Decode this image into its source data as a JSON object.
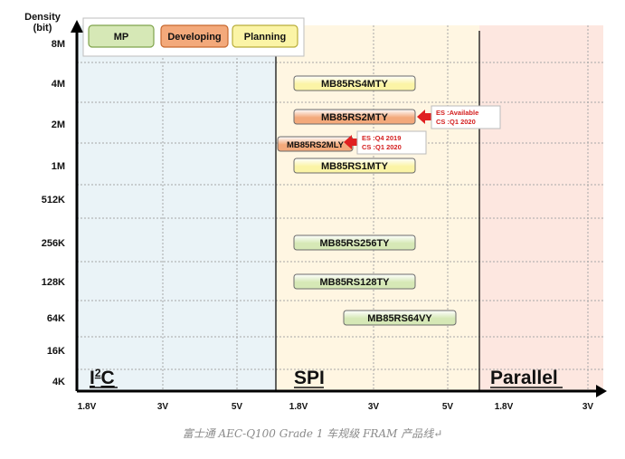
{
  "caption": "富士通 AEC-Q100 Grade 1 车规级 FRAM 产品线↵",
  "chart_data": {
    "type": "table",
    "ylabel_lines": [
      "Density",
      "(bit)"
    ],
    "y_levels": [
      "8M",
      "4M",
      "2M",
      "1M",
      "512K",
      "256K",
      "128K",
      "64K",
      "16K",
      "4K"
    ],
    "regions": [
      {
        "key": "i2c",
        "label": "I2C",
        "label_base": "I",
        "label_sup": "2",
        "label_rest": "C",
        "color": "#eaf3f7",
        "ticks": [
          "1.8V",
          "3V",
          "5V"
        ]
      },
      {
        "key": "spi",
        "label": "SPI",
        "color": "#fff6e2",
        "ticks": [
          "1.8V",
          "3V",
          "5V"
        ]
      },
      {
        "key": "parallel",
        "label": "Parallel",
        "color": "#fde7e0",
        "ticks": [
          "1.8V",
          "3V"
        ]
      }
    ],
    "legend": [
      {
        "label": "MP",
        "color": "#d6e8b6",
        "border": "#7fa34c"
      },
      {
        "label": "Developing",
        "color": "#f3a97b",
        "border": "#c7692f"
      },
      {
        "label": "Planning",
        "color": "#fbf4a6",
        "border": "#b9ad3a"
      }
    ],
    "products": [
      {
        "name": "MB85RS4MTY",
        "density": "4M",
        "status": "Planning",
        "v_min": "1.8V",
        "v_max": "5V"
      },
      {
        "name": "MB85RS2MTY",
        "density": "2M",
        "status": "Developing",
        "v_min": "1.8V",
        "v_max": "5V",
        "notes": [
          "ES :Available",
          "CS :Q1 2020"
        ]
      },
      {
        "name": "MB85RS2MLY",
        "density": "2M",
        "status": "Developing",
        "v_min": "1.8V",
        "v_max": "1.8V",
        "notes": [
          "ES :Q4 2019",
          "CS :Q1 2020"
        ]
      },
      {
        "name": "MB85RS1MTY",
        "density": "1M",
        "status": "Planning",
        "v_min": "1.8V",
        "v_max": "5V"
      },
      {
        "name": "MB85RS256TY",
        "density": "256K",
        "status": "MP",
        "v_min": "1.8V",
        "v_max": "5V"
      },
      {
        "name": "MB85RS128TY",
        "density": "128K",
        "status": "MP",
        "v_min": "1.8V",
        "v_max": "5V"
      },
      {
        "name": "MB85RS64VY",
        "density": "64K",
        "status": "MP",
        "v_min": "3V",
        "v_max": "5V"
      }
    ],
    "arrow_color": "#e02020",
    "note_text_color": "#d42020"
  }
}
